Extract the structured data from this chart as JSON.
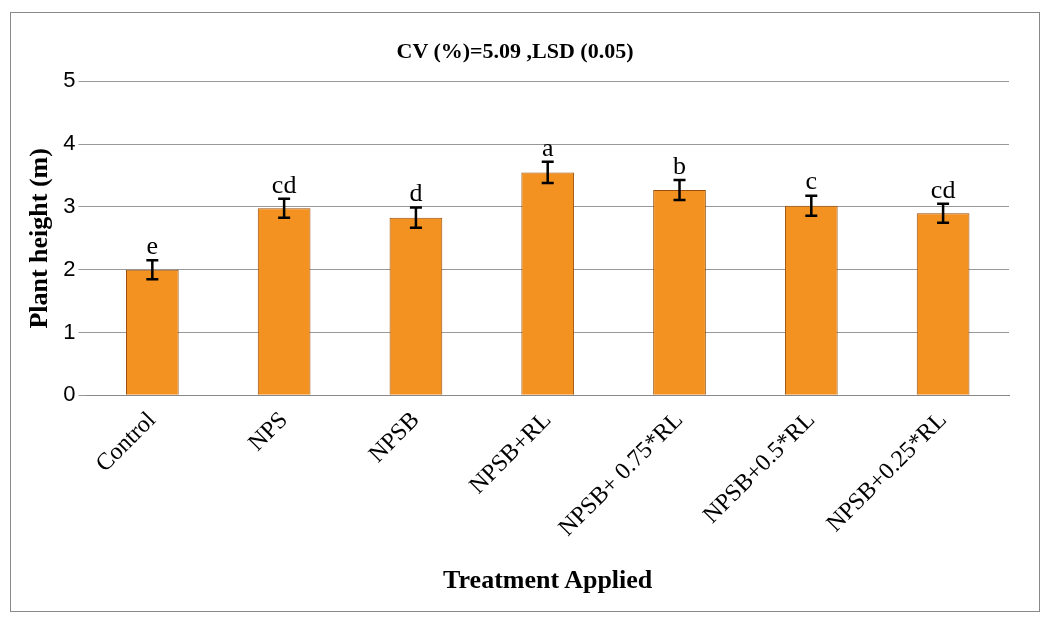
{
  "chart_data": {
    "type": "bar",
    "title": "CV (%)=5.09 ,LSD (0.05)",
    "xlabel": "Treatment Applied",
    "ylabel": "Plant height (m)",
    "categories": [
      "Control",
      "NPS",
      "NPSB",
      "NPSB+RL",
      "NPSB+ 0.75*RL",
      "NPSB+0.5*RL",
      "NPSB+0.25*RL"
    ],
    "values": [
      2.0,
      2.98,
      2.83,
      3.55,
      3.27,
      3.02,
      2.9
    ],
    "errors": [
      0.15,
      0.15,
      0.16,
      0.17,
      0.16,
      0.16,
      0.15
    ],
    "color": "#f39220",
    "ylim": [
      0,
      5
    ],
    "yticks": [
      0,
      1,
      2,
      3,
      4,
      5
    ],
    "grid": "y",
    "legend": false,
    "annotations": [
      {
        "text": "e",
        "x": "Control",
        "y": 2.15
      },
      {
        "text": "cd",
        "x": "NPS",
        "y": 3.13
      },
      {
        "text": "d",
        "x": "NPSB",
        "y": 2.99
      },
      {
        "text": "a",
        "x": "NPSB+RL",
        "y": 3.72
      },
      {
        "text": "b",
        "x": "NPSB+ 0.75*RL",
        "y": 3.43
      },
      {
        "text": "c",
        "x": "NPSB+0.5*RL",
        "y": 3.18
      },
      {
        "text": "cd",
        "x": "NPSB+0.25*RL",
        "y": 3.05
      }
    ]
  }
}
